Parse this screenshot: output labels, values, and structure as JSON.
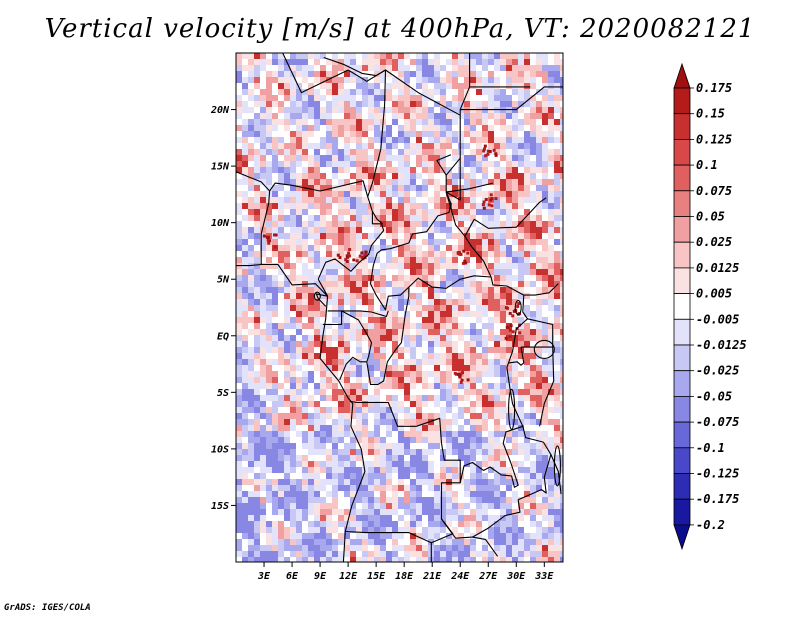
{
  "title": "Vertical velocity [m/s] at 400hPa, VT: 2020082121",
  "credit": "GrADS: IGES/COLA",
  "chart_data": {
    "type": "heatmap",
    "variable": "Vertical velocity",
    "units": "m/s",
    "level": "400hPa",
    "valid_time": "2020082121",
    "lon_range": [
      0,
      35
    ],
    "lat_range": [
      -20,
      25
    ],
    "x_ticks": [
      {
        "value": 3,
        "label": "3E"
      },
      {
        "value": 6,
        "label": "6E"
      },
      {
        "value": 9,
        "label": "9E"
      },
      {
        "value": 12,
        "label": "12E"
      },
      {
        "value": 15,
        "label": "15E"
      },
      {
        "value": 18,
        "label": "18E"
      },
      {
        "value": 21,
        "label": "21E"
      },
      {
        "value": 24,
        "label": "24E"
      },
      {
        "value": 27,
        "label": "27E"
      },
      {
        "value": 30,
        "label": "30E"
      },
      {
        "value": 33,
        "label": "33E"
      }
    ],
    "y_ticks": [
      {
        "value": 20,
        "label": "20N"
      },
      {
        "value": 15,
        "label": "15N"
      },
      {
        "value": 10,
        "label": "10N"
      },
      {
        "value": 5,
        "label": "5N"
      },
      {
        "value": 0,
        "label": "EQ"
      },
      {
        "value": -5,
        "label": "5S"
      },
      {
        "value": -10,
        "label": "10S"
      },
      {
        "value": -15,
        "label": "15S"
      }
    ],
    "colorbar": {
      "levels": [
        "0.175",
        "0.15",
        "0.125",
        "0.1",
        "0.075",
        "0.05",
        "0.025",
        "0.0125",
        "0.005",
        "-0.005",
        "-0.0125",
        "-0.025",
        "-0.05",
        "-0.075",
        "-0.1",
        "-0.125",
        "-0.175",
        "-0.2"
      ],
      "colors": [
        "#a01010",
        "#b41c1c",
        "#c83030",
        "#d84848",
        "#e06060",
        "#e88080",
        "#f0a0a0",
        "#f8c4c4",
        "#fbe2e2",
        "#ffffff",
        "#e2e2fb",
        "#c8c8f4",
        "#a8a8ee",
        "#8888e4",
        "#6868d8",
        "#4848c8",
        "#2c2cb4",
        "#1818a0",
        "#0c0c8c"
      ]
    }
  }
}
